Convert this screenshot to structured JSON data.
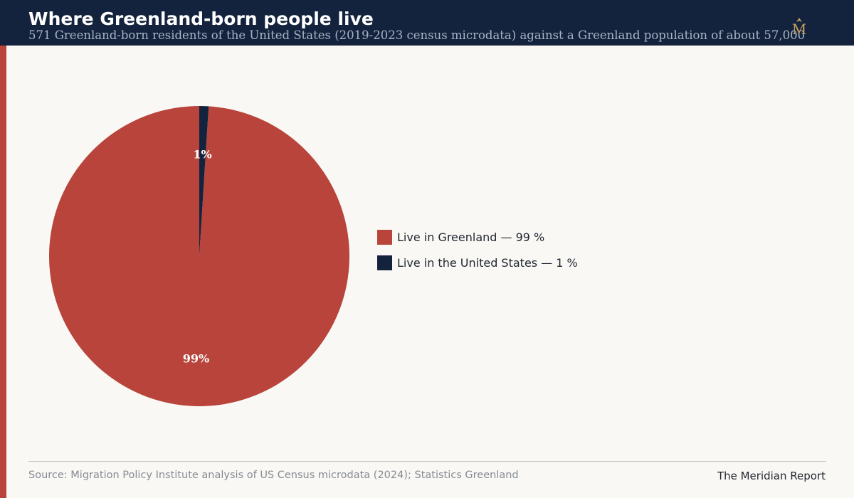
{
  "header": {
    "title": "Where Greenland-born people live",
    "subtitle": "571 Greenland-born residents of the United States (2019-2023 census microdata) against a Greenland population of about 57,000",
    "logo_text": "M"
  },
  "colors": {
    "header_bg": "#14233d",
    "accent_red": "#b8443b",
    "navy": "#14233d",
    "page_bg": "#faf8f4"
  },
  "chart_data": {
    "type": "pie",
    "slices": [
      {
        "label": "Live in Greenland",
        "value": 99,
        "display": "99%",
        "legend": "Live in Greenland — 99 %",
        "color": "#b8443b"
      },
      {
        "label": "Live in the United States",
        "value": 1,
        "display": "1%",
        "legend": "Live in the United States — 1 %",
        "color": "#14233d"
      }
    ],
    "legend_position": "right"
  },
  "footer": {
    "source": "Source: Migration Policy Institute analysis of US Census microdata (2024); Statistics Greenland",
    "brand": "The Meridian Report"
  }
}
